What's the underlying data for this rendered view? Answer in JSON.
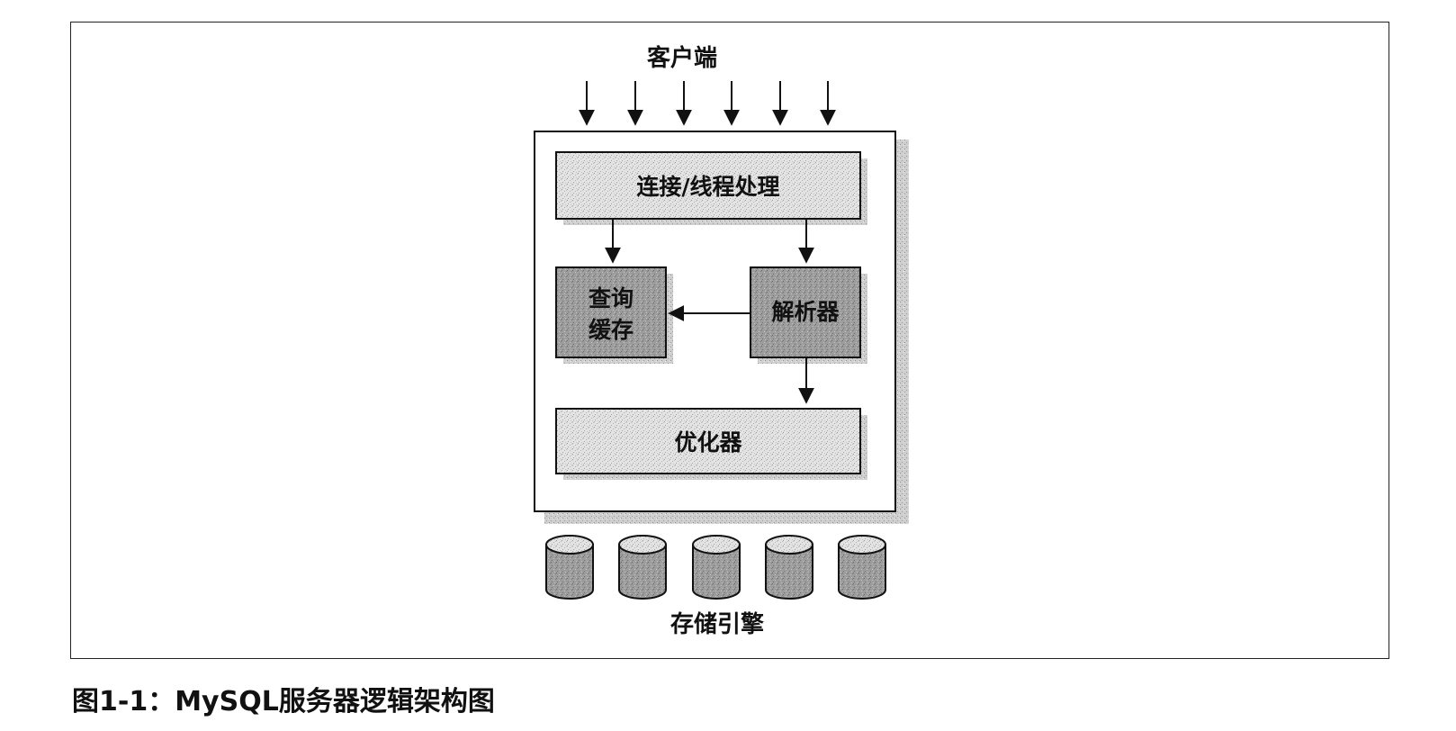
{
  "diagram": {
    "clients_label": "客户端",
    "boxes": {
      "connection": "连接/线程处理",
      "query_cache_line1": "查询",
      "query_cache_line2": "缓存",
      "parser": "解析器",
      "optimizer": "优化器"
    },
    "storage_label": "存储引擎"
  },
  "caption": "图1-1：MySQL服务器逻辑架构图"
}
